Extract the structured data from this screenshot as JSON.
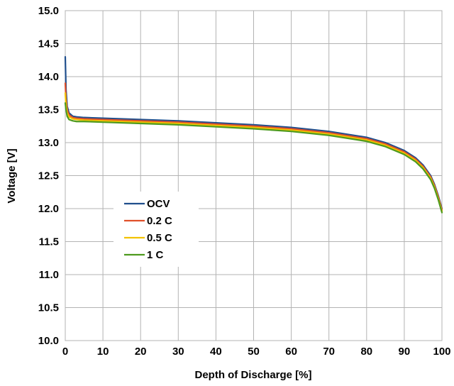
{
  "chart_data": {
    "type": "line",
    "title": "",
    "xlabel": "Depth of Discharge [%]",
    "ylabel": "Voltage [V]",
    "xlim": [
      0,
      100
    ],
    "ylim": [
      10.0,
      15.0
    ],
    "x_ticks": [
      0,
      10,
      20,
      30,
      40,
      50,
      60,
      70,
      80,
      90,
      100
    ],
    "x_tick_labels": [
      "0",
      "10",
      "20",
      "30",
      "40",
      "50",
      "60",
      "70",
      "80",
      "90",
      "100"
    ],
    "y_ticks": [
      10.0,
      10.5,
      11.0,
      11.5,
      12.0,
      12.5,
      13.0,
      13.5,
      14.0,
      14.5,
      15.0
    ],
    "y_tick_labels": [
      "10.0",
      "10.5",
      "11.0",
      "11.5",
      "12.0",
      "12.5",
      "13.0",
      "13.5",
      "14.0",
      "14.5",
      "15.0"
    ],
    "grid": true,
    "legend_position": "center-left",
    "series": [
      {
        "name": "OCV",
        "color": "#1f4e8c",
        "x": [
          0,
          0.2,
          0.5,
          1,
          2,
          3,
          5,
          10,
          20,
          30,
          40,
          50,
          60,
          70,
          80,
          85,
          90,
          93,
          95,
          97,
          98,
          99,
          100
        ],
        "y": [
          14.3,
          13.8,
          13.55,
          13.45,
          13.4,
          13.39,
          13.38,
          13.37,
          13.35,
          13.33,
          13.3,
          13.27,
          13.23,
          13.17,
          13.08,
          13.0,
          12.88,
          12.77,
          12.66,
          12.5,
          12.37,
          12.2,
          12.0
        ]
      },
      {
        "name": "0.2 C",
        "color": "#e0502a",
        "x": [
          0,
          0.2,
          0.5,
          1,
          2,
          3,
          5,
          10,
          20,
          30,
          40,
          50,
          60,
          70,
          80,
          85,
          90,
          93,
          95,
          97,
          98,
          99,
          100
        ],
        "y": [
          13.9,
          13.65,
          13.5,
          13.42,
          13.38,
          13.37,
          13.36,
          13.35,
          13.33,
          13.31,
          13.28,
          13.25,
          13.21,
          13.15,
          13.06,
          12.98,
          12.86,
          12.75,
          12.64,
          12.48,
          12.35,
          12.18,
          11.98
        ]
      },
      {
        "name": "0.5 C",
        "color": "#f2c200",
        "x": [
          0,
          0.2,
          0.5,
          1,
          2,
          3,
          5,
          10,
          20,
          30,
          40,
          50,
          60,
          70,
          80,
          85,
          90,
          93,
          95,
          97,
          98,
          99,
          100
        ],
        "y": [
          13.75,
          13.58,
          13.45,
          13.39,
          13.36,
          13.35,
          13.34,
          13.33,
          13.31,
          13.29,
          13.26,
          13.23,
          13.19,
          13.13,
          13.04,
          12.96,
          12.84,
          12.73,
          12.62,
          12.46,
          12.33,
          12.16,
          11.96
        ]
      },
      {
        "name": "1 C",
        "color": "#4e9a1e",
        "x": [
          0,
          0.2,
          0.5,
          1,
          2,
          3,
          5,
          10,
          20,
          30,
          40,
          50,
          60,
          70,
          80,
          85,
          90,
          93,
          95,
          97,
          98,
          99,
          100
        ],
        "y": [
          13.6,
          13.5,
          13.4,
          13.35,
          13.33,
          13.32,
          13.32,
          13.31,
          13.29,
          13.27,
          13.24,
          13.21,
          13.17,
          13.11,
          13.02,
          12.94,
          12.82,
          12.71,
          12.6,
          12.44,
          12.31,
          12.14,
          11.94
        ]
      }
    ]
  }
}
